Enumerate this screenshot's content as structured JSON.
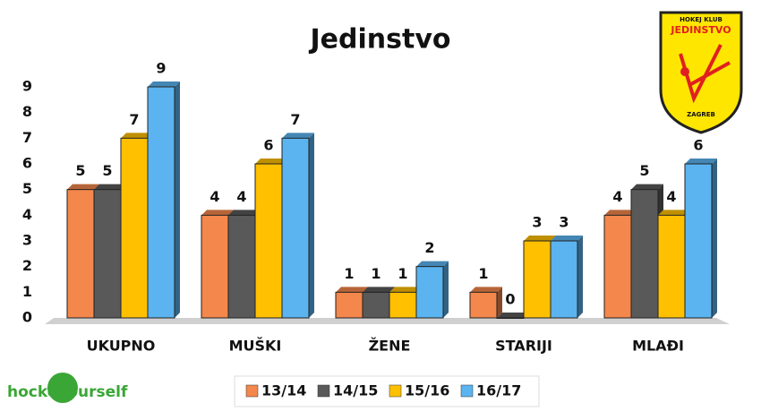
{
  "chart_data": {
    "type": "bar",
    "title": "Jedinstvo",
    "categories": [
      "UKUPNO",
      "MUŠKI",
      "ŽENE",
      "STARIJI",
      "MLAĐI"
    ],
    "series": [
      {
        "name": "13/14",
        "color": "#f4874b",
        "values": [
          5,
          4,
          1,
          1,
          4
        ]
      },
      {
        "name": "14/15",
        "color": "#595959",
        "values": [
          5,
          4,
          1,
          0,
          5
        ]
      },
      {
        "name": "15/16",
        "color": "#ffc000",
        "values": [
          7,
          6,
          1,
          3,
          4
        ]
      },
      {
        "name": "16/17",
        "color": "#5bb4f0",
        "values": [
          9,
          7,
          2,
          3,
          6
        ]
      }
    ],
    "ylim": [
      0,
      9
    ],
    "yticks": [
      0,
      1,
      2,
      3,
      4,
      5,
      6,
      7,
      8,
      9
    ],
    "grid": false,
    "legend": "bottom",
    "data_labels": true
  },
  "logo": {
    "club": "HOKEJ KLUB",
    "name": "JEDINSTVO",
    "city": "ZAGREB"
  },
  "watermark": "hockeyourself"
}
